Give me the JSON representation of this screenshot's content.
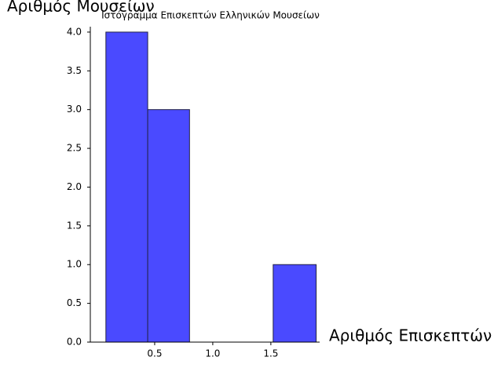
{
  "chart_data": {
    "type": "histogram",
    "title": "Ιστόγραμμα Επισκεπτών Ελληνικών Μουσείων",
    "xlabel": "Αριθμός Επισκεπτών",
    "ylabel": "Αριθμός Μουσείων",
    "bins": [
      0.08,
      0.44,
      0.8,
      1.16,
      1.52,
      1.89
    ],
    "values": [
      4,
      3,
      0,
      0,
      1
    ],
    "color": "#4a4aff",
    "edgecolor": "#222244",
    "xlim": [
      -0.054,
      1.92
    ],
    "ylim": [
      0,
      4.07
    ],
    "xticks": [
      0.5,
      {
        "value": 1,
        "label": "1.0"
      },
      1.5
    ],
    "yticks": [
      {
        "value": 0,
        "label": "0.0"
      },
      0.5,
      {
        "value": 1,
        "label": "1.0"
      },
      1.5,
      {
        "value": 2,
        "label": "2.0"
      },
      2.5,
      {
        "value": 3,
        "label": "3.0"
      },
      3.5,
      {
        "value": 4,
        "label": "4.0"
      }
    ]
  }
}
